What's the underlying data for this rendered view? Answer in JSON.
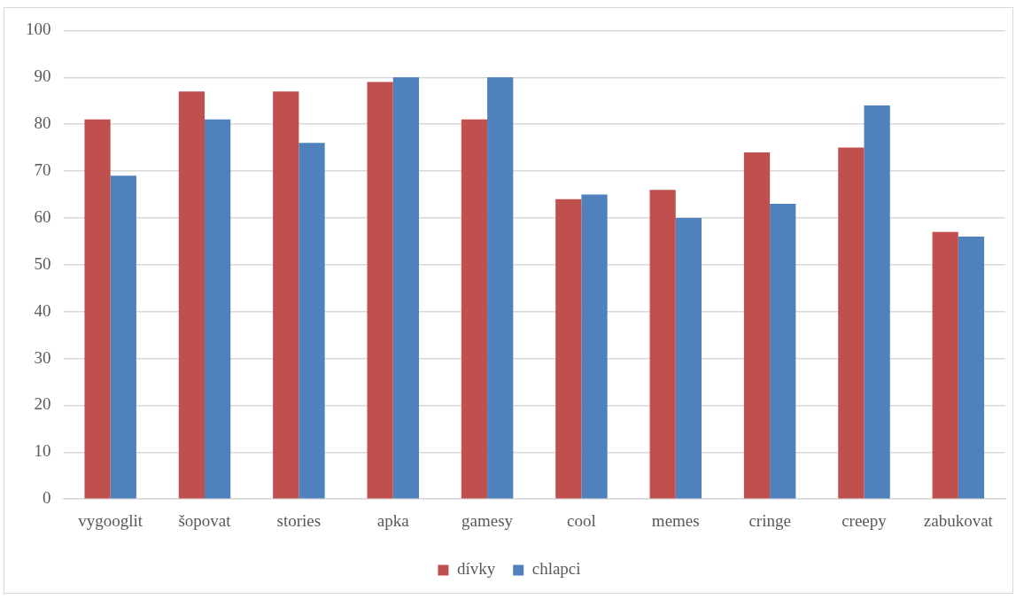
{
  "chart_data": {
    "type": "bar",
    "categories": [
      "vygooglit",
      "šopovat",
      "stories",
      "apka",
      "gamesy",
      "cool",
      "memes",
      "cringe",
      "creepy",
      "zabukovat"
    ],
    "series": [
      {
        "name": "dívky",
        "color": "#c0504d",
        "values": [
          81,
          87,
          87,
          89,
          81,
          64,
          66,
          74,
          75,
          57
        ]
      },
      {
        "name": "chlapci",
        "color": "#4f81bd",
        "values": [
          69,
          81,
          76,
          90,
          90,
          65,
          60,
          63,
          84,
          56
        ]
      }
    ],
    "ylim": [
      0,
      100
    ],
    "yticks": [
      0,
      10,
      20,
      30,
      40,
      50,
      60,
      70,
      80,
      90,
      100
    ],
    "grid": "y",
    "legend": "bottom"
  }
}
